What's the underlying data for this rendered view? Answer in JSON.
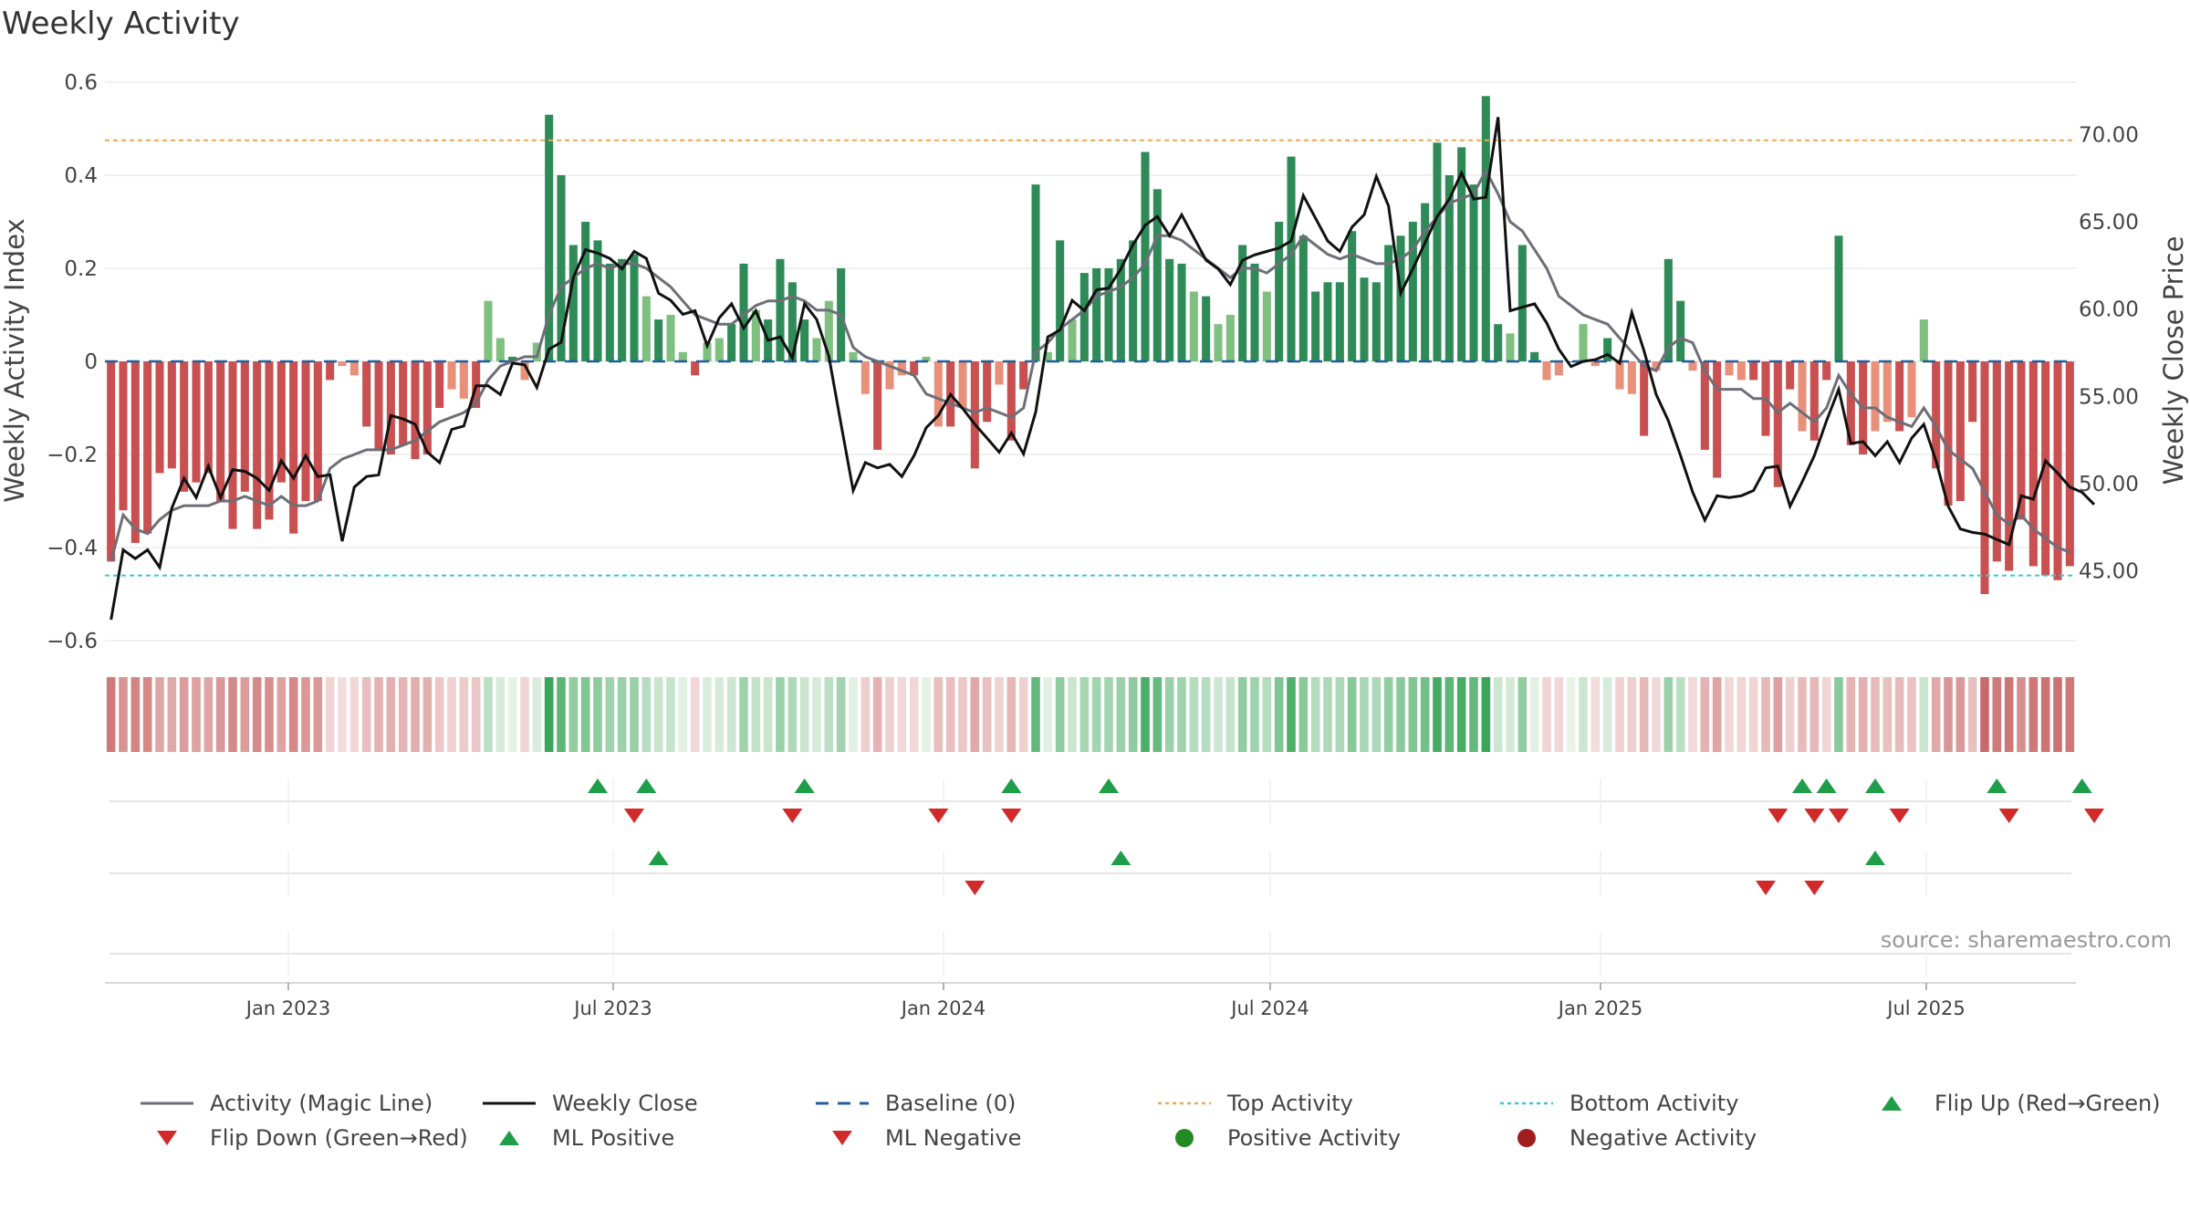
{
  "title": "Weekly Activity",
  "source": "source: sharemaestro.com",
  "colors": {
    "pos_strong": "#2e8b57",
    "pos_light": "#7fbf7f",
    "neg_strong": "#c85050",
    "neg_light": "#e8907a",
    "magic": "#6e6e78",
    "close": "#111111",
    "baseline": "#1f5fa0",
    "top": "#f0a850",
    "bottom": "#38c8e0",
    "up": "#1e9e48",
    "down": "#d22a2a"
  },
  "chart_data": {
    "type": "bar",
    "title": "Weekly Activity",
    "ylabel": "Weekly Activity Index",
    "y2label": "Weekly Close Price",
    "ylim": [
      -0.6,
      0.6
    ],
    "y2lim": [
      41.0,
      73.0
    ],
    "yticks": [
      "0.6",
      "0.4",
      "0.2",
      "0",
      "−0.2",
      "−0.4",
      "−0.6"
    ],
    "y2ticks": [
      "70.00",
      "65.00",
      "60.00",
      "55.00",
      "50.00",
      "45.00"
    ],
    "xticks": [
      "Jan 2023",
      "Jul 2023",
      "Jan 2024",
      "Jul 2024",
      "Jan 2025",
      "Jul 2025"
    ],
    "top_activity": 0.475,
    "bottom_activity": -0.46,
    "activity": [
      -0.43,
      -0.32,
      -0.39,
      -0.37,
      -0.24,
      -0.23,
      -0.28,
      -0.26,
      -0.24,
      -0.3,
      -0.36,
      -0.28,
      -0.36,
      -0.34,
      -0.26,
      -0.37,
      -0.3,
      -0.3,
      -0.04,
      -0.01,
      -0.03,
      -0.14,
      -0.19,
      -0.2,
      -0.18,
      -0.21,
      -0.2,
      -0.1,
      -0.06,
      -0.08,
      -0.1,
      0.13,
      0.05,
      0.01,
      -0.04,
      0.04,
      0.53,
      0.4,
      0.25,
      0.3,
      0.26,
      0.21,
      0.22,
      0.23,
      0.14,
      0.09,
      0.1,
      0.02,
      -0.03,
      0.04,
      0.05,
      0.08,
      0.21,
      0.11,
      0.09,
      0.22,
      0.17,
      0.09,
      0.05,
      0.13,
      0.2,
      0.02,
      -0.07,
      -0.19,
      -0.06,
      -0.03,
      -0.03,
      0.01,
      -0.14,
      -0.14,
      -0.1,
      -0.23,
      -0.13,
      -0.05,
      -0.17,
      -0.06,
      0.38,
      0.02,
      0.26,
      0.09,
      0.19,
      0.2,
      0.2,
      0.22,
      0.26,
      0.45,
      0.37,
      0.22,
      0.21,
      0.15,
      0.14,
      0.08,
      0.1,
      0.25,
      0.21,
      0.15,
      0.3,
      0.44,
      0.27,
      0.15,
      0.17,
      0.17,
      0.28,
      0.18,
      0.17,
      0.25,
      0.27,
      0.3,
      0.34,
      0.47,
      0.4,
      0.46,
      0.38,
      0.57,
      0.08,
      0.06,
      0.25,
      0.02,
      -0.04,
      -0.03,
      0.0,
      0.08,
      -0.01,
      0.05,
      -0.06,
      -0.07,
      -0.16,
      -0.02,
      0.22,
      0.13,
      -0.02,
      -0.19,
      -0.25,
      -0.03,
      -0.04,
      -0.04,
      -0.16,
      -0.27,
      -0.06,
      -0.15,
      -0.17,
      -0.04,
      0.27,
      -0.18,
      -0.2,
      -0.15,
      -0.13,
      -0.15,
      -0.12,
      0.09,
      -0.23,
      -0.31,
      -0.3,
      -0.13,
      -0.5,
      -0.43,
      -0.45,
      -0.34,
      -0.44,
      -0.46,
      -0.47,
      -0.44
    ],
    "magic_line": [
      -0.43,
      -0.33,
      -0.36,
      -0.37,
      -0.34,
      -0.32,
      -0.31,
      -0.31,
      -0.31,
      -0.3,
      -0.3,
      -0.29,
      -0.3,
      -0.31,
      -0.29,
      -0.31,
      -0.31,
      -0.3,
      -0.23,
      -0.21,
      -0.2,
      -0.19,
      -0.19,
      -0.19,
      -0.18,
      -0.17,
      -0.15,
      -0.13,
      -0.12,
      -0.11,
      -0.09,
      -0.04,
      -0.01,
      0.0,
      0.01,
      0.01,
      0.1,
      0.16,
      0.18,
      0.2,
      0.21,
      0.2,
      0.21,
      0.21,
      0.2,
      0.18,
      0.16,
      0.13,
      0.1,
      0.09,
      0.08,
      0.08,
      0.1,
      0.12,
      0.13,
      0.13,
      0.14,
      0.13,
      0.11,
      0.11,
      0.1,
      0.03,
      0.01,
      0.0,
      -0.01,
      -0.02,
      -0.03,
      -0.07,
      -0.08,
      -0.09,
      -0.1,
      -0.11,
      -0.1,
      -0.11,
      -0.12,
      -0.1,
      0.02,
      0.04,
      0.07,
      0.09,
      0.11,
      0.14,
      0.15,
      0.16,
      0.18,
      0.21,
      0.27,
      0.27,
      0.26,
      0.24,
      0.22,
      0.2,
      0.18,
      0.2,
      0.2,
      0.19,
      0.21,
      0.23,
      0.27,
      0.25,
      0.23,
      0.22,
      0.23,
      0.22,
      0.21,
      0.21,
      0.22,
      0.24,
      0.28,
      0.31,
      0.34,
      0.35,
      0.36,
      0.41,
      0.36,
      0.3,
      0.28,
      0.24,
      0.2,
      0.14,
      0.12,
      0.1,
      0.09,
      0.08,
      0.05,
      0.02,
      -0.01,
      -0.02,
      0.03,
      0.05,
      0.04,
      -0.02,
      -0.06,
      -0.06,
      -0.06,
      -0.08,
      -0.08,
      -0.11,
      -0.09,
      -0.11,
      -0.13,
      -0.1,
      -0.03,
      -0.07,
      -0.1,
      -0.1,
      -0.12,
      -0.13,
      -0.14,
      -0.1,
      -0.14,
      -0.19,
      -0.21,
      -0.23,
      -0.28,
      -0.33,
      -0.35,
      -0.33,
      -0.36,
      -0.38,
      -0.4,
      -0.41
    ],
    "weekly_close": [
      42.2,
      46.2,
      45.7,
      46.2,
      45.2,
      48.6,
      50.3,
      49.2,
      51.0,
      49.2,
      50.8,
      50.7,
      50.3,
      49.6,
      51.3,
      50.3,
      51.6,
      50.4,
      50.5,
      46.7,
      49.8,
      50.4,
      50.5,
      53.9,
      53.7,
      53.4,
      51.8,
      51.2,
      53.1,
      53.3,
      55.6,
      55.6,
      55.1,
      56.9,
      56.8,
      55.5,
      57.7,
      58.1,
      61.8,
      63.4,
      63.2,
      62.9,
      62.3,
      63.3,
      62.9,
      60.9,
      60.5,
      59.7,
      59.9,
      57.9,
      59.5,
      60.3,
      58.9,
      59.9,
      58.2,
      58.4,
      57.2,
      60.3,
      59.4,
      57.3,
      53.4,
      49.6,
      51.2,
      50.9,
      51.1,
      50.4,
      51.6,
      53.2,
      53.9,
      55.1,
      54.3,
      53.4,
      52.6,
      51.8,
      52.9,
      51.7,
      54.1,
      58.4,
      58.8,
      60.5,
      59.9,
      61.1,
      61.2,
      62.3,
      63.7,
      64.8,
      65.3,
      64.2,
      65.4,
      64.1,
      62.8,
      62.3,
      61.4,
      62.8,
      63.1,
      63.3,
      63.5,
      63.9,
      66.5,
      65.2,
      63.9,
      63.3,
      64.7,
      65.4,
      67.6,
      65.9,
      60.9,
      62.3,
      63.8,
      65.3,
      66.3,
      67.8,
      66.3,
      66.4,
      71.0,
      59.9,
      60.1,
      60.3,
      59.2,
      57.7,
      56.7,
      57.0,
      57.1,
      57.4,
      56.9,
      59.8,
      57.6,
      55.1,
      53.6,
      51.6,
      49.5,
      47.9,
      49.3,
      49.2,
      49.3,
      49.6,
      50.9,
      51.0,
      48.7,
      50.1,
      51.6,
      53.6,
      55.4,
      52.3,
      52.4,
      51.6,
      52.4,
      51.2,
      52.6,
      53.4,
      51.3,
      48.7,
      47.4,
      47.2,
      47.1,
      46.8,
      46.5,
      49.3,
      49.1,
      51.3,
      50.6,
      49.8,
      49.5,
      48.8
    ],
    "flip_up": [
      40,
      44,
      57,
      74,
      82,
      139,
      141,
      145,
      155,
      162
    ],
    "flip_down": [
      43,
      56,
      68,
      74,
      137,
      140,
      142,
      147,
      156,
      163
    ],
    "ml_positive": [
      45,
      83,
      145
    ],
    "ml_negative": [
      71,
      136,
      140
    ]
  },
  "legend": [
    {
      "label": "Activity (Magic Line)",
      "symbol": "line-solid-gray"
    },
    {
      "label": "Weekly Close",
      "symbol": "line-solid-black"
    },
    {
      "label": "Baseline (0)",
      "symbol": "line-dashed-blue"
    },
    {
      "label": "Top Activity",
      "symbol": "line-dotted-orange"
    },
    {
      "label": "Bottom Activity",
      "symbol": "line-dotted-cyan"
    },
    {
      "label": "Flip Up (Red→Green)",
      "symbol": "triangle-up-green"
    },
    {
      "label": "Flip Down (Green→Red)",
      "symbol": "triangle-down-red"
    },
    {
      "label": "ML Positive",
      "symbol": "triangle-up-green"
    },
    {
      "label": "ML Negative",
      "symbol": "triangle-down-red"
    },
    {
      "label": "Positive Activity",
      "symbol": "circle-green"
    },
    {
      "label": "Negative Activity",
      "symbol": "circle-red"
    }
  ]
}
